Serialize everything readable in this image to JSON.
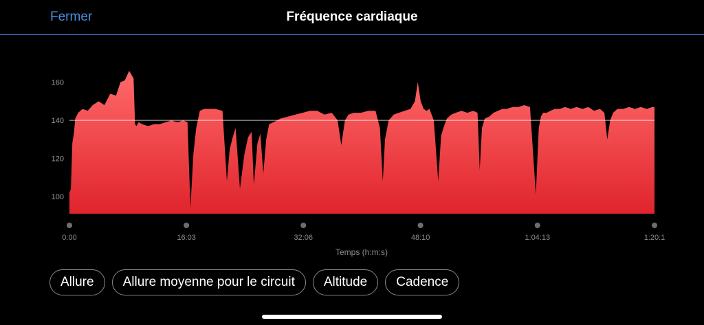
{
  "header": {
    "close_label": "Fermer",
    "title": "Fréquence cardiaque"
  },
  "chart_data": {
    "type": "area",
    "title": "Fréquence cardiaque",
    "xlabel": "Temps (h:m:s)",
    "ylabel": "",
    "x_tick_labels": [
      "0:00",
      "16:03",
      "32:06",
      "48:10",
      "1:04:13",
      "1:20:1"
    ],
    "x_tick_minutes": [
      0,
      16.05,
      32.1,
      48.17,
      64.22,
      80.28
    ],
    "y_ticks": [
      100,
      120,
      140,
      160
    ],
    "ylim": [
      91,
      170
    ],
    "xlim_minutes": [
      0,
      80.28
    ],
    "reference_line": 140,
    "fill_color_top": "#ff6a6a",
    "fill_color_bottom": "#e0242c",
    "series": [
      {
        "x": [
          0,
          0.2,
          0.4,
          0.6,
          0.8,
          1.2,
          1.8,
          2.5,
          3.2,
          4.0,
          4.8,
          5.6,
          6.4,
          7.0,
          7.6,
          8.2,
          8.8,
          9.0,
          9.2,
          9.5,
          10.0,
          10.8,
          11.6,
          12.4,
          13.2,
          14.0,
          14.8,
          15.6,
          16.2,
          16.6,
          17.0,
          17.4,
          17.9,
          18.5,
          19.2,
          20.0,
          21.0,
          21.6,
          22.0,
          22.4,
          22.8,
          23.4,
          24.0,
          24.5,
          25.0,
          25.3,
          25.8,
          26.2,
          26.6,
          27.0,
          27.4,
          28.0,
          29.0,
          30.0,
          31.0,
          32.0,
          33.0,
          34.0,
          35.0,
          36.0,
          36.8,
          37.3,
          37.8,
          38.3,
          39.0,
          40.0,
          41.0,
          42.0,
          42.6,
          43.0,
          43.3,
          43.8,
          44.5,
          45.2,
          46.0,
          46.8,
          47.4,
          47.8,
          48.2,
          48.6,
          49.0,
          49.4,
          50.0,
          50.6,
          51.0,
          51.4,
          51.8,
          52.4,
          53.0,
          53.8,
          54.6,
          55.4,
          56.0,
          56.3,
          56.6,
          57.0,
          57.6,
          58.2,
          58.8,
          59.4,
          60.0,
          60.8,
          61.6,
          62.4,
          63.2,
          64.0,
          64.4,
          64.7,
          65.0,
          65.5,
          66.0,
          66.6,
          67.3,
          68.0,
          68.8,
          69.6,
          70.4,
          71.2,
          72.0,
          72.8,
          73.4,
          73.8,
          74.2,
          74.6,
          75.2,
          76.0,
          76.8,
          77.6,
          78.4,
          79.2,
          80.0,
          80.28
        ],
        "values": [
          102,
          104,
          128,
          133,
          141,
          144,
          146,
          145,
          148,
          150,
          148,
          154,
          153,
          160,
          161,
          166,
          162,
          138,
          137,
          139,
          138,
          137,
          138,
          138,
          139,
          140,
          139,
          140,
          139,
          94,
          122,
          136,
          145,
          146,
          146,
          146,
          145,
          108,
          125,
          131,
          136,
          104,
          122,
          131,
          134,
          106,
          128,
          133,
          112,
          130,
          138,
          139,
          141,
          142,
          143,
          144,
          145,
          145,
          143,
          144,
          140,
          127,
          140,
          143,
          144,
          144,
          145,
          145,
          136,
          108,
          130,
          140,
          143,
          144,
          145,
          146,
          150,
          160,
          150,
          146,
          145,
          146,
          140,
          108,
          132,
          137,
          141,
          143,
          144,
          145,
          144,
          145,
          144,
          114,
          136,
          141,
          142,
          144,
          145,
          146,
          146,
          147,
          147,
          148,
          147,
          101,
          136,
          142,
          144,
          144,
          145,
          146,
          146,
          147,
          146,
          147,
          146,
          147,
          145,
          146,
          144,
          130,
          140,
          144,
          146,
          146,
          147,
          146,
          147,
          146,
          147,
          147
        ]
      }
    ]
  },
  "chips": [
    "Allure",
    "Allure moyenne pour le circuit",
    "Altitude",
    "Cadence"
  ]
}
